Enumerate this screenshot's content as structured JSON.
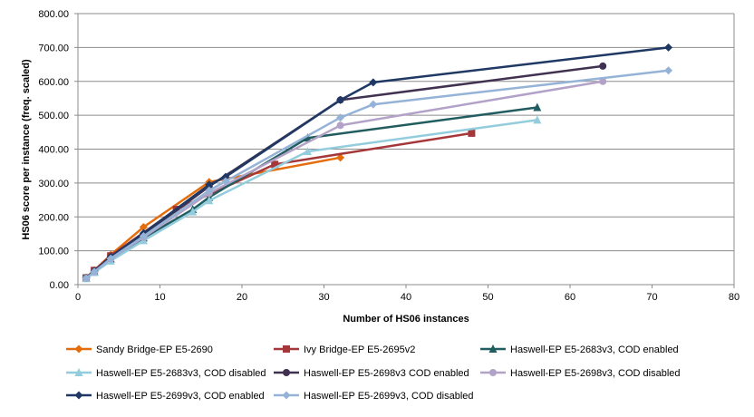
{
  "chart_data": {
    "type": "line",
    "title": "",
    "xlabel": "Number of  HS06 instances",
    "ylabel": "HS06 score per instance (freq. scaled)",
    "xlim": [
      0,
      80
    ],
    "ylim": [
      0,
      800
    ],
    "x_ticks": [
      0,
      10,
      20,
      30,
      40,
      50,
      60,
      70,
      80
    ],
    "y_ticks": [
      0,
      100,
      200,
      300,
      400,
      500,
      600,
      700,
      800
    ],
    "x_tick_labels": [
      "0",
      "10",
      "20",
      "30",
      "40",
      "50",
      "60",
      "70",
      "80"
    ],
    "y_tick_labels": [
      "0.00",
      "100.00",
      "200.00",
      "300.00",
      "400.00",
      "500.00",
      "600.00",
      "700.00",
      "800.00"
    ],
    "grid": "horizontal",
    "legend_position": "bottom",
    "series": [
      {
        "name": "Sandy Bridge-EP E5-2690",
        "color": "#E46C0A",
        "marker": "diamond",
        "points": [
          [
            1,
            21
          ],
          [
            2,
            42
          ],
          [
            4,
            88
          ],
          [
            8,
            170
          ],
          [
            16,
            303
          ],
          [
            32,
            375
          ]
        ]
      },
      {
        "name": "Ivy Bridge-EP E5-2695v2",
        "color": "#A5373A",
        "marker": "square",
        "points": [
          [
            1,
            20
          ],
          [
            2,
            42
          ],
          [
            4,
            85
          ],
          [
            12,
            222
          ],
          [
            24,
            355
          ],
          [
            48,
            447
          ]
        ]
      },
      {
        "name": "Haswell-EP E5-2683v3, COD enabled",
        "color": "#215C5E",
        "marker": "triangle",
        "points": [
          [
            1,
            19
          ],
          [
            2,
            38
          ],
          [
            4,
            76
          ],
          [
            8,
            138
          ],
          [
            14,
            222
          ],
          [
            16,
            258
          ],
          [
            28,
            433
          ],
          [
            56,
            523
          ]
        ]
      },
      {
        "name": "Haswell-EP E5-2683v3, COD disabled",
        "color": "#93CDDD",
        "marker": "triangle",
        "points": [
          [
            1,
            18
          ],
          [
            2,
            36
          ],
          [
            4,
            70
          ],
          [
            8,
            130
          ],
          [
            14,
            215
          ],
          [
            16,
            248
          ],
          [
            28,
            393
          ],
          [
            56,
            486
          ]
        ]
      },
      {
        "name": "Haswell-EP E5-2698v3 COD enabled",
        "color": "#403151",
        "marker": "circle",
        "points": [
          [
            1,
            20
          ],
          [
            2,
            40
          ],
          [
            4,
            80
          ],
          [
            8,
            148
          ],
          [
            16,
            290
          ],
          [
            32,
            545
          ],
          [
            64,
            645
          ]
        ]
      },
      {
        "name": "Haswell-EP E5-2698v3, COD disabled",
        "color": "#B3A2C7",
        "marker": "circle",
        "points": [
          [
            1,
            19
          ],
          [
            2,
            38
          ],
          [
            4,
            76
          ],
          [
            8,
            140
          ],
          [
            16,
            270
          ],
          [
            32,
            470
          ],
          [
            64,
            600
          ]
        ]
      },
      {
        "name": "Haswell-EP E5-2699v3, COD enabled",
        "color": "#1F3864",
        "marker": "diamond",
        "points": [
          [
            1,
            20
          ],
          [
            2,
            40
          ],
          [
            4,
            82
          ],
          [
            8,
            152
          ],
          [
            16,
            295
          ],
          [
            18,
            318
          ],
          [
            32,
            545
          ],
          [
            36,
            597
          ],
          [
            72,
            700
          ]
        ]
      },
      {
        "name": "Haswell-EP E5-2699v3, COD disabled",
        "color": "#95B3D7",
        "marker": "diamond",
        "points": [
          [
            1,
            19
          ],
          [
            2,
            38
          ],
          [
            4,
            77
          ],
          [
            8,
            143
          ],
          [
            16,
            278
          ],
          [
            18,
            305
          ],
          [
            32,
            493
          ],
          [
            36,
            532
          ],
          [
            72,
            632
          ]
        ]
      }
    ]
  }
}
